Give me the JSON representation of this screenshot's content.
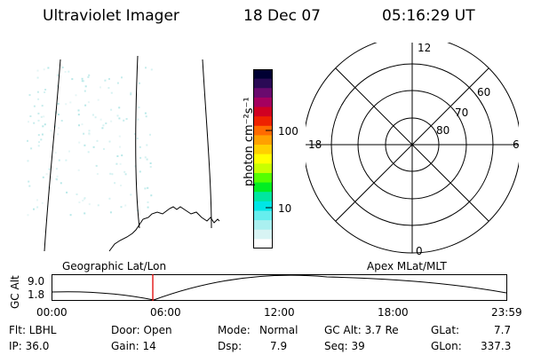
{
  "header": {
    "instrument": "Ultraviolet Imager",
    "date": "18 Dec 07",
    "time": "05:16:29 UT"
  },
  "colorbar": {
    "unit_label": "photon cm⁻²s⁻¹",
    "ticks": [
      {
        "label": "100",
        "value": 100
      },
      {
        "label": "10",
        "value": 10
      }
    ],
    "colors": [
      "#000033",
      "#2a0a55",
      "#6a0a6e",
      "#a5005f",
      "#d00022",
      "#ee2200",
      "#ff6a00",
      "#ffa000",
      "#ffd000",
      "#ffff00",
      "#c8ff00",
      "#55ff00",
      "#00ee22",
      "#00e6a0",
      "#00e6e6",
      "#66eeee",
      "#aaf0f0",
      "#d8f4f4",
      "#ffffff"
    ]
  },
  "polar": {
    "mlt_labels": {
      "top": "12",
      "left": "18",
      "right": "6",
      "bottom": "0"
    },
    "lat_labels": [
      "60",
      "70",
      "80"
    ]
  },
  "timeline": {
    "y_label": "GC Alt",
    "y_ticks": [
      "9.0",
      "1.8"
    ],
    "left_title": "Geographic Lat/Lon",
    "right_title": "Apex MLat/MLT",
    "x_ticks": [
      "00:00",
      "06:00",
      "12:00",
      "18:00",
      "23:59"
    ],
    "marker_color": "#e00000"
  },
  "info": {
    "col1": [
      "Flt: LBHL",
      "IP: 36.0"
    ],
    "col2": [
      "Door: Open",
      "Gain: 14"
    ],
    "col3a": [
      "Mode:",
      "Dsp:"
    ],
    "col3b": [
      "Normal",
      "7.9"
    ],
    "col4": [
      "GC Alt: 3.7 Re",
      "Seq: 39"
    ],
    "col5a": [
      "GLat:",
      "GLon:"
    ],
    "col5b": [
      "7.7",
      "337.3"
    ]
  }
}
